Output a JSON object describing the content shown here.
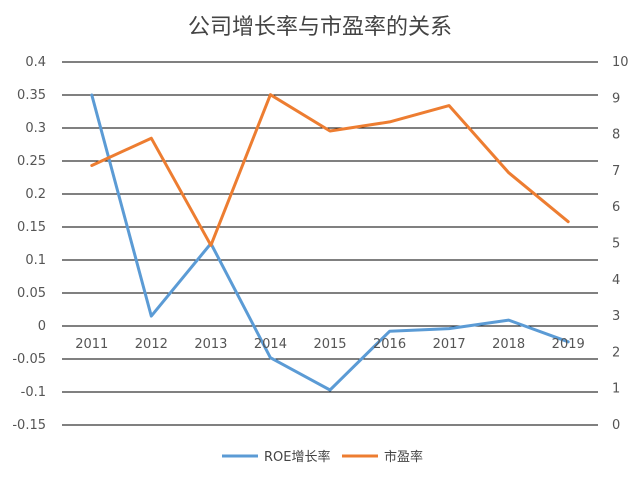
{
  "chart_data": {
    "type": "line",
    "title": "公司增长率与市盈率的关系",
    "categories": [
      "2011",
      "2012",
      "2013",
      "2014",
      "2015",
      "2016",
      "2017",
      "2018",
      "2019"
    ],
    "y_left": {
      "ylim": [
        -0.15,
        0.4
      ],
      "ticks": [
        "0.4",
        "0.35",
        "0.3",
        "0.25",
        "0.2",
        "0.15",
        "0.1",
        "0.05",
        "0",
        "-0.05",
        "-0.1",
        "-0.15"
      ],
      "tick_values": [
        0.4,
        0.35,
        0.3,
        0.25,
        0.2,
        0.15,
        0.1,
        0.05,
        0,
        -0.05,
        -0.1,
        -0.15
      ]
    },
    "y_right": {
      "ylim": [
        0,
        10
      ],
      "ticks": [
        "10",
        "9",
        "8",
        "7",
        "6",
        "5",
        "4",
        "3",
        "2",
        "1",
        "0"
      ],
      "tick_values": [
        10,
        9,
        8,
        7,
        6,
        5,
        4,
        3,
        2,
        1,
        0
      ]
    },
    "series": [
      {
        "name": "ROE增长率",
        "axis": "left",
        "color": "#5B9BD5",
        "values": [
          0.35,
          0.015,
          0.125,
          -0.048,
          -0.097,
          -0.008,
          -0.004,
          0.009,
          -0.024
        ]
      },
      {
        "name": "市盈率",
        "axis": "right",
        "color": "#ED7D31",
        "values": [
          7.15,
          7.9,
          4.95,
          9.1,
          8.1,
          8.35,
          8.8,
          6.95,
          5.6
        ]
      }
    ],
    "legend": "bottom"
  }
}
